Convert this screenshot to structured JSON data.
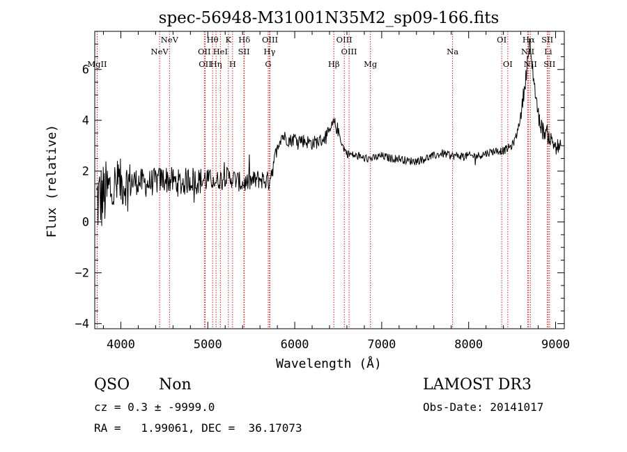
{
  "chart_data": {
    "type": "line",
    "title": "spec-56948-M31001N35M2_sp09-166.fits",
    "xlabel": "Wavelength (Å)",
    "ylabel": "Flux (relative)",
    "xlim": [
      3700,
      9100
    ],
    "ylim": [
      -4.2,
      7.5
    ],
    "x_ticks": [
      4000,
      5000,
      6000,
      7000,
      8000,
      9000
    ],
    "x_tick_labels": [
      "4000",
      "5000",
      "6000",
      "7000",
      "8000",
      "9000"
    ],
    "y_ticks": [
      -4,
      -2,
      0,
      2,
      4,
      6
    ],
    "y_tick_labels": [
      "−4",
      "−2",
      "0",
      "2",
      "4",
      "6"
    ],
    "series": [
      {
        "name": "flux",
        "x": [
          3700,
          3750,
          3800,
          3850,
          3900,
          3950,
          4000,
          4050,
          4100,
          4200,
          4300,
          4400,
          4500,
          4600,
          4700,
          4800,
          4900,
          5000,
          5100,
          5200,
          5300,
          5400,
          5500,
          5600,
          5700,
          5750,
          5800,
          5850,
          5900,
          5950,
          6000,
          6100,
          6200,
          6300,
          6400,
          6450,
          6500,
          6550,
          6600,
          6700,
          6800,
          6900,
          7000,
          7100,
          7200,
          7300,
          7400,
          7500,
          7600,
          7700,
          7800,
          7900,
          8000,
          8100,
          8200,
          8300,
          8400,
          8500,
          8550,
          8600,
          8650,
          8700,
          8750,
          8800,
          8850,
          8900,
          8950,
          9000,
          9050
        ],
        "y": [
          0.8,
          0.9,
          1.0,
          1.2,
          1.3,
          1.4,
          1.5,
          1.5,
          1.6,
          1.6,
          1.5,
          1.6,
          1.7,
          1.6,
          1.5,
          1.7,
          1.6,
          1.7,
          1.6,
          1.8,
          1.7,
          1.5,
          1.6,
          1.7,
          1.6,
          2.2,
          3.0,
          3.4,
          3.3,
          3.2,
          3.3,
          3.2,
          3.1,
          3.2,
          3.5,
          3.9,
          3.6,
          3.0,
          2.7,
          2.6,
          2.5,
          2.5,
          2.6,
          2.5,
          2.5,
          2.4,
          2.4,
          2.5,
          2.6,
          2.7,
          2.6,
          2.6,
          2.6,
          2.6,
          2.7,
          2.8,
          2.8,
          3.0,
          3.4,
          4.2,
          5.5,
          7.0,
          5.6,
          4.2,
          3.6,
          3.5,
          3.2,
          3.0,
          2.9
        ]
      }
    ],
    "emission_lines": [
      {
        "label": "MgII",
        "x": 3728,
        "row": 3
      },
      {
        "label": "NeV",
        "x": 4446,
        "row": 2
      },
      {
        "label": "NeV",
        "x": 4560,
        "row": 1
      },
      {
        "label": "OII",
        "x": 4960,
        "row": 2
      },
      {
        "label": "OII",
        "x": 4970,
        "row": 3
      },
      {
        "label": "Hθ",
        "x": 5055,
        "row": 1
      },
      {
        "label": "Hη",
        "x": 5095,
        "row": 3
      },
      {
        "label": "HeI",
        "x": 5145,
        "row": 2
      },
      {
        "label": "K",
        "x": 5237,
        "row": 1
      },
      {
        "label": "H",
        "x": 5285,
        "row": 3
      },
      {
        "label": "Hδ",
        "x": 5420,
        "row": 1
      },
      {
        "label": "SII",
        "x": 5415,
        "row": 2
      },
      {
        "label": "OIII",
        "x": 5715,
        "row": 1
      },
      {
        "label": "Hγ",
        "x": 5710,
        "row": 2
      },
      {
        "label": "G",
        "x": 5695,
        "row": 3
      },
      {
        "label": "Hβ",
        "x": 6450,
        "row": 3
      },
      {
        "label": "OIII",
        "x": 6570,
        "row": 1
      },
      {
        "label": "OIII",
        "x": 6625,
        "row": 2
      },
      {
        "label": "Mg",
        "x": 6870,
        "row": 3
      },
      {
        "label": "Na",
        "x": 7815,
        "row": 2
      },
      {
        "label": "OI",
        "x": 8380,
        "row": 1
      },
      {
        "label": "OI",
        "x": 8450,
        "row": 3
      },
      {
        "label": "Hα",
        "x": 8690,
        "row": 1
      },
      {
        "label": "NII",
        "x": 8680,
        "row": 2
      },
      {
        "label": "NII",
        "x": 8710,
        "row": 3
      },
      {
        "label": "SII",
        "x": 8905,
        "row": 1
      },
      {
        "label": "Li",
        "x": 8915,
        "row": 2
      },
      {
        "label": "SII",
        "x": 8930,
        "row": 3
      }
    ],
    "line_color": "#000000",
    "marker_color": "#c81e1e"
  },
  "info": {
    "class_label": "QSO",
    "subclass_label": "Non",
    "survey": "LAMOST DR3",
    "cz_line": "cz = 0.3 ± -9999.0",
    "obs_date": "Obs-Date: 20141017",
    "coords": "RA =   1.99061, DEC =  36.17073"
  }
}
